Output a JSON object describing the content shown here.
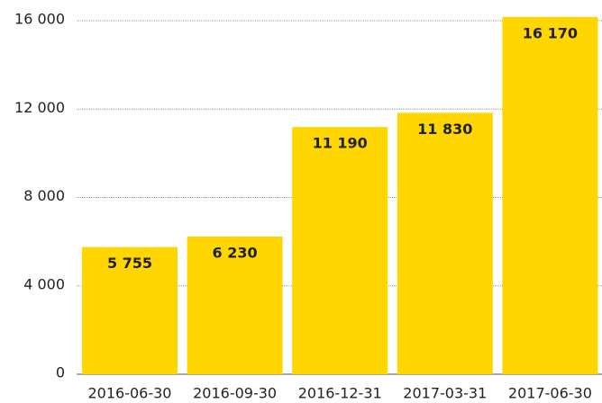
{
  "chart_data": {
    "type": "bar",
    "categories": [
      "2016-06-30",
      "2016-09-30",
      "2016-12-31",
      "2017-03-31",
      "2017-06-30"
    ],
    "values": [
      5755,
      6230,
      11190,
      11830,
      16170
    ],
    "value_labels": [
      "5 755",
      "6 230",
      "11 190",
      "11 830",
      "16 170"
    ],
    "color": "#ffd600",
    "ylim": [
      0,
      16000
    ],
    "yticks": [
      0,
      {
        "value": 4000,
        "label": "4 000"
      },
      {
        "value": 8000,
        "label": "8 000"
      },
      {
        "value": 12000,
        "label": "12 000"
      },
      {
        "value": 16000,
        "label": "16 000"
      }
    ],
    "grid": true
  }
}
